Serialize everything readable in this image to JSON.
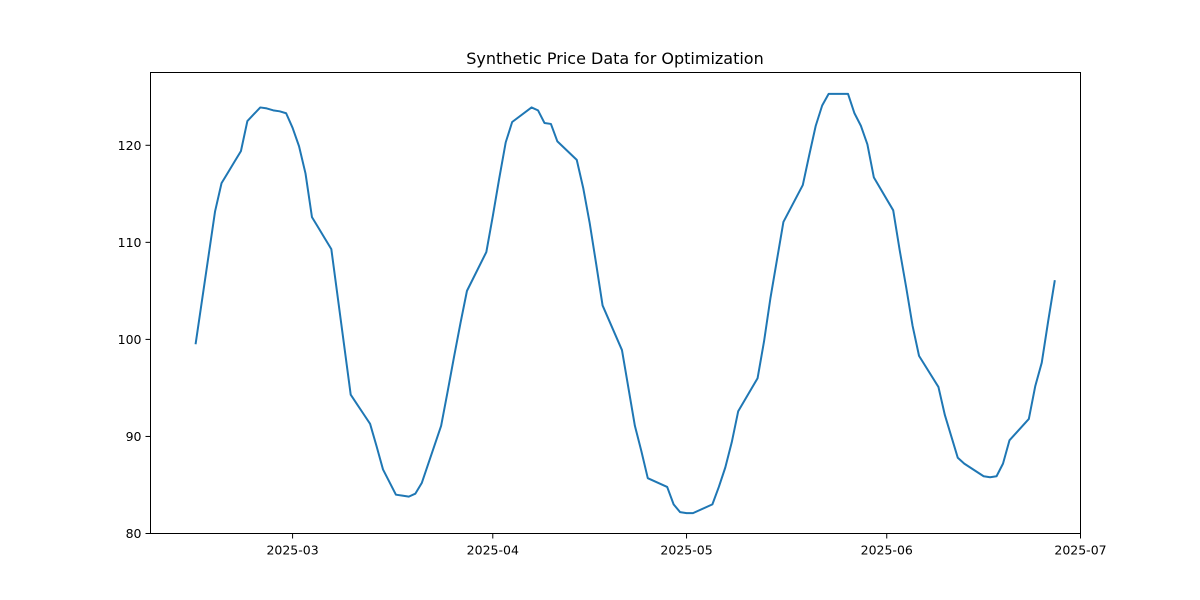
{
  "chart_data": {
    "type": "line",
    "title": "Synthetic Price Data for Optimization",
    "xlabel": "",
    "ylabel": "",
    "xlim": [
      "2025-02-07",
      "2025-07-01"
    ],
    "ylim": [
      80,
      127.5
    ],
    "x_ticks": [
      "2025-03-01",
      "2025-04-01",
      "2025-05-01",
      "2025-06-01",
      "2025-07-01"
    ],
    "x_tick_labels": [
      "2025-03",
      "2025-04",
      "2025-05",
      "2025-06",
      "2025-07"
    ],
    "y_ticks": [
      80,
      90,
      100,
      110,
      120
    ],
    "y_tick_labels": [
      "80",
      "90",
      "100",
      "110",
      "120"
    ],
    "grid": false,
    "series": [
      {
        "color": "#1f77b4",
        "x": [
          "2025-02-14",
          "2025-02-17",
          "2025-02-18",
          "2025-02-19",
          "2025-02-20",
          "2025-02-21",
          "2025-02-22",
          "2025-02-23",
          "2025-02-24",
          "2025-02-25",
          "2025-02-26",
          "2025-02-27",
          "2025-02-28",
          "2025-03-01",
          "2025-03-02",
          "2025-03-03",
          "2025-03-04",
          "2025-03-05",
          "2025-03-06",
          "2025-03-07",
          "2025-03-10",
          "2025-03-11",
          "2025-03-12",
          "2025-03-13",
          "2025-03-14",
          "2025-03-15",
          "2025-03-17",
          "2025-03-18",
          "2025-03-19",
          "2025-03-20",
          "2025-03-21",
          "2025-03-24",
          "2025-03-25",
          "2025-03-26",
          "2025-03-27",
          "2025-03-28",
          "2025-03-31",
          "2025-04-01",
          "2025-04-02",
          "2025-04-03",
          "2025-04-04",
          "2025-04-07",
          "2025-04-08",
          "2025-04-09",
          "2025-04-10",
          "2025-04-11",
          "2025-04-14",
          "2025-04-15",
          "2025-04-16",
          "2025-04-17",
          "2025-04-18",
          "2025-04-21",
          "2025-04-22",
          "2025-04-23",
          "2025-04-24",
          "2025-04-25",
          "2025-04-28",
          "2025-04-29",
          "2025-04-30",
          "2025-05-01",
          "2025-05-02",
          "2025-05-05",
          "2025-05-06",
          "2025-05-07",
          "2025-05-08",
          "2025-05-09",
          "2025-05-12",
          "2025-05-13",
          "2025-05-14",
          "2025-05-15",
          "2025-05-16",
          "2025-05-19",
          "2025-05-20",
          "2025-05-21",
          "2025-05-22",
          "2025-05-23",
          "2025-05-26",
          "2025-05-27",
          "2025-05-28",
          "2025-05-29",
          "2025-05-30",
          "2025-06-02",
          "2025-06-03",
          "2025-06-04",
          "2025-06-05",
          "2025-06-06",
          "2025-06-09",
          "2025-06-10",
          "2025-06-11",
          "2025-06-12",
          "2025-06-13",
          "2025-06-16",
          "2025-06-17",
          "2025-06-18",
          "2025-06-19",
          "2025-06-20",
          "2025-06-23",
          "2025-06-24",
          "2025-06-25",
          "2025-06-26",
          "2025-06-27"
        ],
        "y": [
          99.6,
          113.2,
          116.1,
          117.2,
          118.3,
          119.4,
          122.5,
          123.2,
          123.9,
          123.8,
          123.6,
          123.5,
          123.3,
          121.8,
          119.9,
          117.1,
          112.6,
          111.5,
          110.4,
          109.3,
          94.3,
          93.3,
          92.3,
          91.3,
          89.0,
          86.6,
          84.0,
          83.9,
          83.8,
          84.1,
          85.2,
          91.1,
          94.6,
          98.2,
          101.7,
          105.0,
          109.0,
          112.7,
          116.6,
          120.3,
          122.4,
          123.9,
          123.6,
          122.3,
          122.2,
          120.4,
          118.5,
          115.6,
          112.0,
          107.8,
          103.5,
          98.9,
          95.0,
          91.1,
          88.5,
          85.7,
          84.8,
          83.0,
          82.2,
          82.1,
          82.1,
          83.0,
          84.8,
          86.8,
          89.4,
          92.6,
          96.0,
          99.8,
          104.3,
          108.2,
          112.1,
          115.9,
          119.0,
          122.0,
          124.1,
          125.3,
          125.3,
          123.3,
          122.0,
          120.1,
          116.7,
          113.3,
          109.2,
          105.4,
          101.4,
          98.3,
          95.1,
          92.2,
          90.0,
          87.8,
          87.2,
          85.9,
          85.8,
          85.9,
          87.2,
          89.6,
          91.8,
          95.2,
          97.6,
          101.9,
          106.0
        ]
      }
    ]
  }
}
